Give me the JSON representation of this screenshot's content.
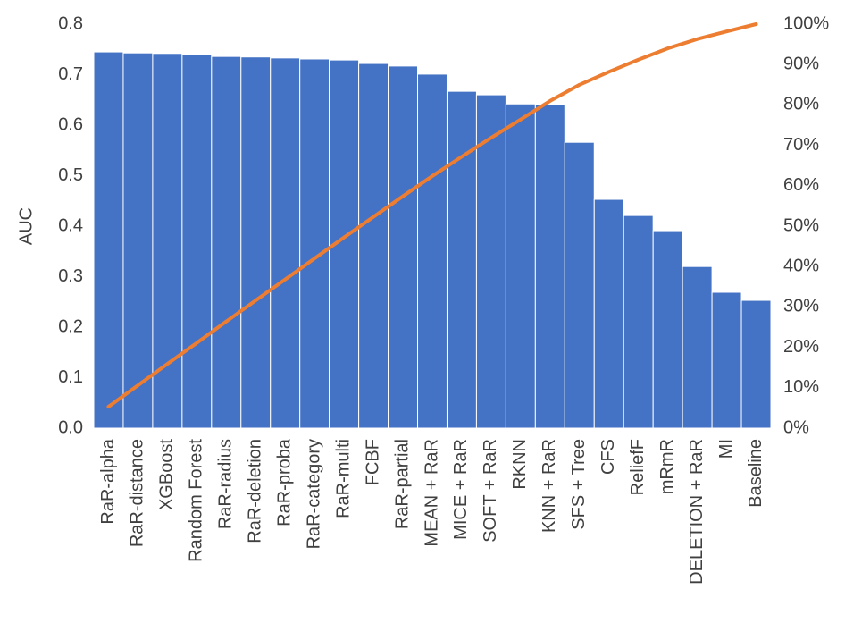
{
  "chart_data": {
    "type": "pareto",
    "ylabel": "AUC",
    "categories": [
      "RaR-alpha",
      "RaR-distance",
      "XGBoost",
      "Random Forest",
      "RaR-radius",
      "RaR-deletion",
      "RaR-proba",
      "RaR-category",
      "RaR-multi",
      "FCBF",
      "RaR-partial",
      "MEAN + RaR",
      "MICE + RaR",
      "SOFT + RaR",
      "RKNN",
      "KNN + RaR",
      "SFS + Tree",
      "CFS",
      "ReliefF",
      "mRmR",
      "DELETION + RaR",
      "MI",
      "Baseline"
    ],
    "series": [
      {
        "type": "bar",
        "color": "#4472c4",
        "values": [
          0.745,
          0.743,
          0.742,
          0.74,
          0.736,
          0.735,
          0.733,
          0.731,
          0.729,
          0.722,
          0.717,
          0.701,
          0.667,
          0.66,
          0.642,
          0.641,
          0.566,
          0.453,
          0.421,
          0.391,
          0.32,
          0.269,
          0.253
        ]
      },
      {
        "type": "line",
        "axis": "y2",
        "color": "#ed7d31",
        "values": [
          5.3,
          10.6,
          15.9,
          21.1,
          26.4,
          31.6,
          36.8,
          42.0,
          47.2,
          52.3,
          57.4,
          62.4,
          67.2,
          71.9,
          76.4,
          81.0,
          85.0,
          88.2,
          91.2,
          94.0,
          96.3,
          98.2,
          100
        ]
      }
    ],
    "ylim": [
      0,
      0.8
    ],
    "yticks": [
      {
        "value": 0,
        "label": "0.0"
      },
      0.1,
      0.2,
      0.3,
      0.4,
      0.5,
      0.6,
      0.7,
      0.8
    ],
    "y2lim": [
      0,
      100
    ],
    "y2ticks": [
      {
        "value": 0,
        "label": "0%"
      },
      {
        "value": 10,
        "label": "10%"
      },
      {
        "value": 20,
        "label": "20%"
      },
      {
        "value": 30,
        "label": "30%"
      },
      {
        "value": 40,
        "label": "40%"
      },
      {
        "value": 50,
        "label": "50%"
      },
      {
        "value": 60,
        "label": "60%"
      },
      {
        "value": 70,
        "label": "70%"
      },
      {
        "value": 80,
        "label": "80%"
      },
      {
        "value": 90,
        "label": "90%"
      },
      {
        "value": 100,
        "label": "100%"
      }
    ],
    "grid": false
  }
}
